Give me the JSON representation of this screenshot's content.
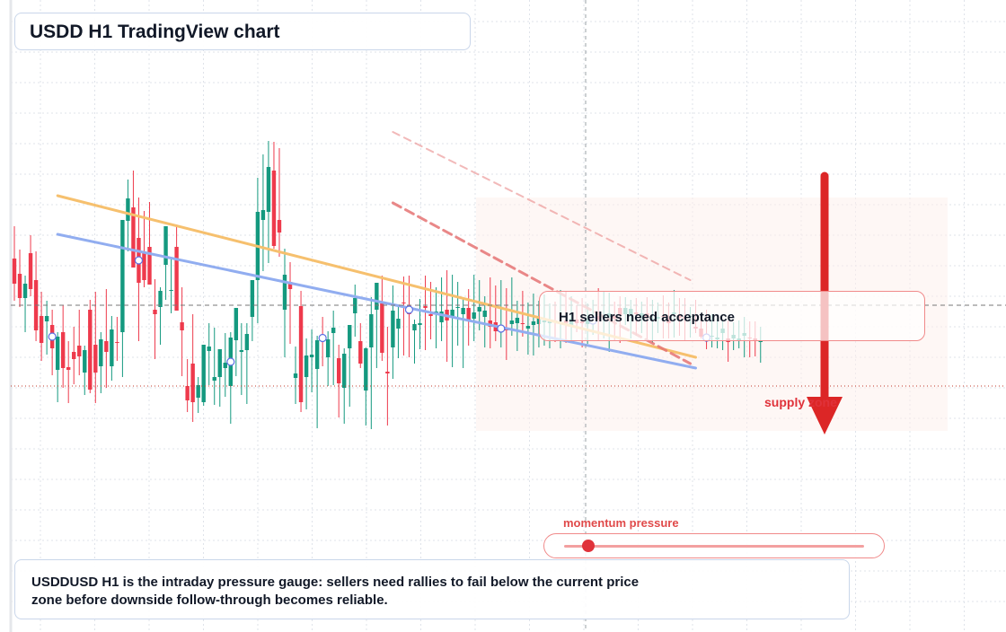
{
  "title": "USDD H1 TradingView chart",
  "callout": "H1 sellers need acceptance",
  "supply_label": "supply zone",
  "momentum": {
    "label": "momentum pressure",
    "level": 0.08
  },
  "caption": "USDDUSD H1 is the intraday pressure gauge: sellers need rallies to fail below the current price zone before downside follow-through becomes reliable.",
  "colors": {
    "bull": "#14997f",
    "bear": "#ee3a4c",
    "arrow": "#dc2626",
    "trend_upper": "#f6c06e",
    "trend_lower": "#91adf0",
    "channel": "#e57373"
  },
  "chart_data": {
    "type": "candlestick",
    "timeframe": "H1",
    "symbol": "USDDUSD",
    "series": [
      {
        "name": "ohlc",
        "values": [
          {
            "o": 52,
            "h": 88,
            "l": 5,
            "c": 24
          },
          {
            "o": 35,
            "h": 62,
            "l": -2,
            "c": 8
          },
          {
            "o": 8,
            "h": 33,
            "l": -30,
            "c": 24
          },
          {
            "o": 58,
            "h": 78,
            "l": 10,
            "c": 18
          },
          {
            "o": 28,
            "h": 60,
            "l": -40,
            "c": -28
          },
          {
            "o": -12,
            "h": 15,
            "l": -62,
            "c": -42
          },
          {
            "o": -18,
            "h": 5,
            "l": -55,
            "c": -12
          },
          {
            "o": -22,
            "h": -5,
            "l": -78,
            "c": -48
          },
          {
            "o": -72,
            "h": -30,
            "l": -108,
            "c": -35
          },
          {
            "o": -30,
            "h": 0,
            "l": -92,
            "c": -70
          },
          {
            "o": -69,
            "h": -40,
            "l": -109,
            "c": -72
          },
          {
            "o": -52,
            "h": -24,
            "l": -88,
            "c": -60
          },
          {
            "o": -45,
            "h": -5,
            "l": -78,
            "c": -57
          },
          {
            "o": -75,
            "h": -45,
            "l": -100,
            "c": -50
          },
          {
            "o": -5,
            "h": 6,
            "l": -98,
            "c": -94
          },
          {
            "o": -44,
            "h": 15,
            "l": -109,
            "c": -75
          },
          {
            "o": -68,
            "h": -30,
            "l": -98,
            "c": -38
          },
          {
            "o": -40,
            "h": 18,
            "l": -92,
            "c": -52
          },
          {
            "o": -68,
            "h": -12,
            "l": -84,
            "c": -27
          },
          {
            "o": -41,
            "h": -13,
            "l": -62,
            "c": -42
          },
          {
            "o": -30,
            "h": 50,
            "l": -80,
            "c": 95
          },
          {
            "o": 94,
            "h": 140,
            "l": 60,
            "c": 119
          },
          {
            "o": 109,
            "h": 150,
            "l": 47,
            "c": 42
          },
          {
            "o": 75,
            "h": 120,
            "l": -40,
            "c": 25
          },
          {
            "o": 60,
            "h": 105,
            "l": 20,
            "c": 28
          },
          {
            "o": 65,
            "h": 115,
            "l": 35,
            "c": 23
          },
          {
            "o": -5,
            "h": 29,
            "l": -60,
            "c": -10
          },
          {
            "o": -2,
            "h": 20,
            "l": -44,
            "c": 16
          },
          {
            "o": 45,
            "h": 87,
            "l": 6,
            "c": 88
          },
          {
            "o": 17,
            "h": 54,
            "l": -9,
            "c": 17
          },
          {
            "o": 65,
            "h": 90,
            "l": 10,
            "c": -6
          },
          {
            "o": -19,
            "h": 20,
            "l": -79,
            "c": -28
          },
          {
            "o": -90,
            "h": -60,
            "l": -119,
            "c": -106
          },
          {
            "o": -65,
            "h": -10,
            "l": -130,
            "c": -108
          },
          {
            "o": -103,
            "h": -80,
            "l": -120,
            "c": -89
          },
          {
            "o": -108,
            "h": -55,
            "l": -112,
            "c": -44
          },
          {
            "o": -51,
            "h": -20,
            "l": -89,
            "c": -46
          },
          {
            "o": -84,
            "h": -25,
            "l": -111,
            "c": -80
          },
          {
            "o": -80,
            "h": -55,
            "l": -113,
            "c": -49
          },
          {
            "o": -70,
            "h": -31,
            "l": -102,
            "c": -64
          },
          {
            "o": -90,
            "h": -30,
            "l": -132,
            "c": -36
          },
          {
            "o": -39,
            "h": -10,
            "l": -79,
            "c": -3
          },
          {
            "o": -52,
            "h": -20,
            "l": -100,
            "c": -50
          },
          {
            "o": -50,
            "h": -20,
            "l": -110,
            "c": -32
          },
          {
            "o": -13,
            "h": 10,
            "l": -40,
            "c": 28
          },
          {
            "o": 28,
            "h": 142,
            "l": -20,
            "c": 104
          },
          {
            "o": 95,
            "h": 168,
            "l": 38,
            "c": 106
          },
          {
            "o": 104,
            "h": 183,
            "l": 47,
            "c": 154
          },
          {
            "o": 150,
            "h": 182,
            "l": 63,
            "c": 66
          },
          {
            "o": 95,
            "h": 175,
            "l": 54,
            "c": 81
          },
          {
            "o": -5,
            "h": 63,
            "l": -58,
            "c": 34
          },
          {
            "o": 26,
            "h": 48,
            "l": -43,
            "c": 18
          },
          {
            "o": -81,
            "h": -46,
            "l": -110,
            "c": -76
          },
          {
            "o": -1,
            "h": 16,
            "l": -119,
            "c": -108
          },
          {
            "o": -80,
            "h": -37,
            "l": -116,
            "c": -56
          },
          {
            "o": -58,
            "h": -27,
            "l": -97,
            "c": -55
          },
          {
            "o": -71,
            "h": -34,
            "l": -137,
            "c": -39
          },
          {
            "o": -33,
            "h": -13,
            "l": -68,
            "c": -40
          },
          {
            "o": -58,
            "h": -29,
            "l": -90,
            "c": -38
          },
          {
            "o": -31,
            "h": -6,
            "l": -89,
            "c": -25
          },
          {
            "o": -59,
            "h": -44,
            "l": -125,
            "c": -87
          },
          {
            "o": -92,
            "h": -48,
            "l": -132,
            "c": -54
          },
          {
            "o": -48,
            "h": -24,
            "l": -113,
            "c": -22
          },
          {
            "o": -9,
            "h": 23,
            "l": -35,
            "c": 8
          },
          {
            "o": -40,
            "h": -20,
            "l": -70,
            "c": -65
          },
          {
            "o": -95,
            "h": -47,
            "l": -134,
            "c": -48
          },
          {
            "o": -47,
            "h": 9,
            "l": -138,
            "c": -10
          },
          {
            "o": -5,
            "h": 13,
            "l": -70,
            "c": 25
          },
          {
            "o": 2,
            "h": 33,
            "l": -62,
            "c": -53
          },
          {
            "o": -74,
            "h": -24,
            "l": -134,
            "c": -76
          },
          {
            "o": -47,
            "h": 22,
            "l": -82,
            "c": -6
          },
          {
            "o": -26,
            "h": -2,
            "l": -59,
            "c": -15
          },
          {
            "o": 3,
            "h": 32,
            "l": -56,
            "c": 2
          },
          {
            "o": 0,
            "h": 33,
            "l": -58,
            "c": -10
          },
          {
            "o": -28,
            "h": -16,
            "l": -65,
            "c": -21
          },
          {
            "o": -22,
            "h": 7,
            "l": -49,
            "c": -20
          },
          {
            "o": -1,
            "h": 33,
            "l": -50,
            "c": -3
          },
          {
            "o": -10,
            "h": 26,
            "l": -38,
            "c": -12
          },
          {
            "o": -10,
            "h": 20,
            "l": -48,
            "c": -7
          },
          {
            "o": -19,
            "h": 31,
            "l": -40,
            "c": -7
          },
          {
            "o": -5,
            "h": 39,
            "l": -63,
            "c": -17
          },
          {
            "o": -13,
            "h": 34,
            "l": -69,
            "c": -5
          },
          {
            "o": -2,
            "h": 26,
            "l": -45,
            "c": -2
          },
          {
            "o": -10,
            "h": 9,
            "l": -70,
            "c": -3
          },
          {
            "o": -3,
            "h": 18,
            "l": -45,
            "c": -16
          },
          {
            "o": -15,
            "h": 34,
            "l": -40,
            "c": -8
          },
          {
            "o": -7,
            "h": 28,
            "l": -28,
            "c": -2
          },
          {
            "o": -13,
            "h": 10,
            "l": -47,
            "c": -6
          },
          {
            "o": -17,
            "h": 31,
            "l": -48,
            "c": -24
          },
          {
            "o": -19,
            "h": 22,
            "l": -40,
            "c": -29
          },
          {
            "o": -29,
            "h": 28,
            "l": -47,
            "c": -23
          },
          {
            "o": -26,
            "h": 19,
            "l": -61,
            "c": -28
          },
          {
            "o": -21,
            "h": 31,
            "l": -34,
            "c": -17
          },
          {
            "o": -20,
            "h": 5,
            "l": -51,
            "c": -14
          },
          {
            "o": -20,
            "h": 16,
            "l": -35,
            "c": -21
          },
          {
            "o": -26,
            "h": 3,
            "l": -55,
            "c": -23
          },
          {
            "o": -22,
            "h": 13,
            "l": -56,
            "c": -18
          },
          {
            "o": -21,
            "h": 5,
            "l": -47,
            "c": -14
          },
          {
            "o": -19,
            "h": 12,
            "l": -45,
            "c": -17
          },
          {
            "o": -20,
            "h": 2,
            "l": -48,
            "c": -18
          },
          {
            "o": -17,
            "h": 4,
            "l": -41,
            "c": -19
          },
          {
            "o": -21,
            "h": 17,
            "l": -48,
            "c": -20
          },
          {
            "o": -17,
            "h": 15,
            "l": -42,
            "c": -20
          },
          {
            "o": -22,
            "h": 10,
            "l": -39,
            "c": -15
          },
          {
            "o": -16,
            "h": 0,
            "l": -30,
            "c": -20
          },
          {
            "o": -18,
            "h": 8,
            "l": -47,
            "c": -20
          },
          {
            "o": -21,
            "h": 2,
            "l": -43,
            "c": -16
          },
          {
            "o": -19,
            "h": 6,
            "l": -33,
            "c": -15
          },
          {
            "o": -12,
            "h": 19,
            "l": -40,
            "c": -16
          },
          {
            "o": -13,
            "h": 16,
            "l": -37,
            "c": -11
          },
          {
            "o": -13,
            "h": 14,
            "l": -52,
            "c": -9
          },
          {
            "o": -12,
            "h": 4,
            "l": -39,
            "c": -15
          },
          {
            "o": -3,
            "h": 10,
            "l": -42,
            "c": -11
          },
          {
            "o": -10,
            "h": 9,
            "l": -22,
            "c": -3
          },
          {
            "o": -12,
            "h": 6,
            "l": -37,
            "c": -4
          },
          {
            "o": -8,
            "h": 8,
            "l": -34,
            "c": -10
          },
          {
            "o": -13,
            "h": 4,
            "l": -31,
            "c": -9
          },
          {
            "o": -9,
            "h": 9,
            "l": -38,
            "c": -14
          },
          {
            "o": -16,
            "h": 6,
            "l": -42,
            "c": -15
          },
          {
            "o": -15,
            "h": 3,
            "l": -31,
            "c": -13
          },
          {
            "o": -12,
            "h": 11,
            "l": -37,
            "c": -13
          },
          {
            "o": -15,
            "h": 3,
            "l": -37,
            "c": -20
          },
          {
            "o": -10,
            "h": 17,
            "l": -36,
            "c": -8
          },
          {
            "o": -11,
            "h": 8,
            "l": -34,
            "c": -14
          },
          {
            "o": -13,
            "h": 8,
            "l": -39,
            "c": -15
          },
          {
            "o": -12,
            "h": -2,
            "l": -36,
            "c": -12
          },
          {
            "o": -24,
            "h": 6,
            "l": -31,
            "c": -26
          },
          {
            "o": -26,
            "h": -15,
            "l": -37,
            "c": -35
          },
          {
            "o": -34,
            "h": -5,
            "l": -49,
            "c": -38
          },
          {
            "o": -35,
            "h": -10,
            "l": -47,
            "c": -34
          },
          {
            "o": -38,
            "h": -15,
            "l": -48,
            "c": -36
          },
          {
            "o": -31,
            "h": -16,
            "l": -50,
            "c": -26
          },
          {
            "o": -37,
            "h": -17,
            "l": -63,
            "c": -41
          },
          {
            "o": -37,
            "h": -19,
            "l": -50,
            "c": -33
          },
          {
            "o": -39,
            "h": -17,
            "l": -48,
            "c": -37
          },
          {
            "o": -34,
            "h": -13,
            "l": -58,
            "c": -31
          },
          {
            "o": -36,
            "h": -18,
            "l": -58,
            "c": -37
          },
          {
            "o": -37,
            "h": -18,
            "l": -57,
            "c": -40
          },
          {
            "o": -40,
            "h": -24,
            "l": -64,
            "c": -40
          }
        ]
      }
    ],
    "trendlines": [
      {
        "name": "upper",
        "points": [
          [
            8,
            122
          ],
          [
            126,
            -58
          ]
        ]
      },
      {
        "name": "lower",
        "points": [
          [
            8,
            79
          ],
          [
            126,
            -70
          ]
        ]
      },
      {
        "name": "channel-dashed",
        "points": [
          [
            70,
            114
          ],
          [
            125,
            -65
          ]
        ]
      },
      {
        "name": "channel-faint",
        "points": [
          [
            70,
            193
          ],
          [
            125,
            28
          ]
        ]
      }
    ],
    "current_price": 0,
    "xlim": [
      0,
      140
    ],
    "ylim": [
      -190,
      280
    ],
    "grid": true
  }
}
